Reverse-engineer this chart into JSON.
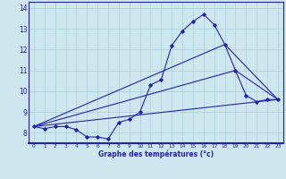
{
  "xlabel": "Graphe des températures (°c)",
  "xlim": [
    -0.5,
    23.5
  ],
  "ylim": [
    7.5,
    14.3
  ],
  "yticks": [
    8,
    9,
    10,
    11,
    12,
    13,
    14
  ],
  "xticks": [
    0,
    1,
    2,
    3,
    4,
    5,
    6,
    7,
    8,
    9,
    10,
    11,
    12,
    13,
    14,
    15,
    16,
    17,
    18,
    19,
    20,
    21,
    22,
    23
  ],
  "bg_color": "#cce8ee",
  "grid_color": "#aaccd8",
  "line_color": "#2222aa",
  "line1_x": [
    0,
    1,
    2,
    3,
    4,
    5,
    6,
    7,
    8,
    9,
    10,
    11,
    12,
    13,
    14,
    15,
    16,
    17,
    18,
    19,
    20,
    21,
    22,
    23
  ],
  "line1_y": [
    8.3,
    8.2,
    8.3,
    8.3,
    8.15,
    7.8,
    7.8,
    7.7,
    8.5,
    8.65,
    9.0,
    10.3,
    10.55,
    12.2,
    12.9,
    13.35,
    13.7,
    13.2,
    12.25,
    11.0,
    9.8,
    9.5,
    9.6,
    9.6
  ],
  "line2_x": [
    0,
    23
  ],
  "line2_y": [
    8.3,
    9.6
  ],
  "line3_x": [
    0,
    19,
    23
  ],
  "line3_y": [
    8.3,
    11.0,
    9.6
  ],
  "line4_x": [
    0,
    18,
    23
  ],
  "line4_y": [
    8.3,
    12.25,
    9.6
  ]
}
